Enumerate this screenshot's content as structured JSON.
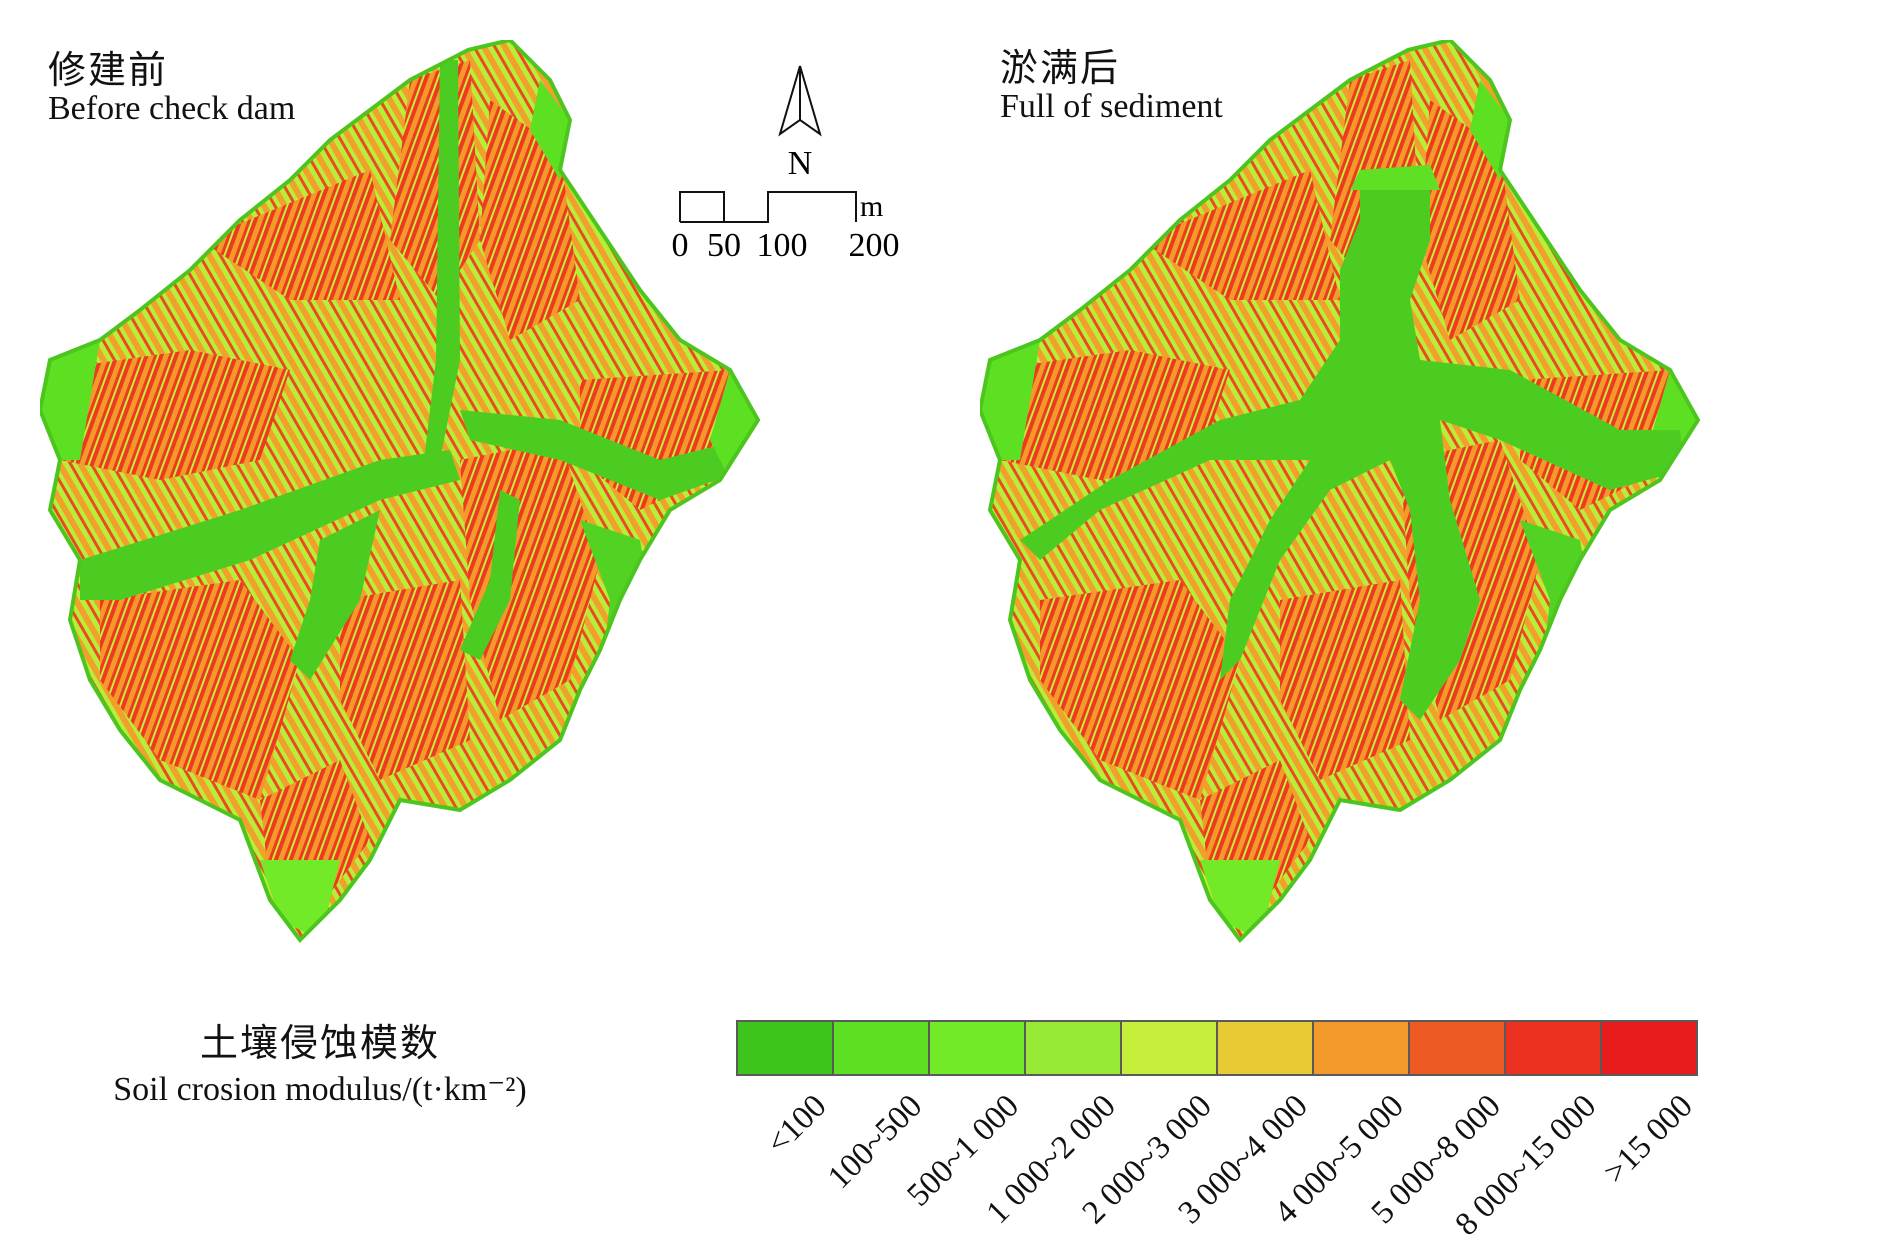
{
  "panels": {
    "left": {
      "title_zh": "修建前",
      "title_en": "Before check dam"
    },
    "right": {
      "title_zh": "淤满后",
      "title_en": "Full of sediment"
    }
  },
  "north_arrow": {
    "label": "N"
  },
  "scale_bar": {
    "unit": "m",
    "ticks": [
      "0",
      "50",
      "100",
      "200"
    ]
  },
  "legend": {
    "title_zh": "土壤侵蚀模数",
    "title_en": "Soil crosion modulus/(t·km⁻²)",
    "classes": [
      {
        "label": "<100",
        "color": "#3fc41c"
      },
      {
        "label": "100~500",
        "color": "#5ee022"
      },
      {
        "label": "500~1 000",
        "color": "#72ea28"
      },
      {
        "label": "1 000~2 000",
        "color": "#98ea38"
      },
      {
        "label": "2 000~3 000",
        "color": "#c4ee3a"
      },
      {
        "label": "3 000~4 000",
        "color": "#e8cb34"
      },
      {
        "label": "4 000~5 000",
        "color": "#f29a2c"
      },
      {
        "label": "5 000~8 000",
        "color": "#ee5a24"
      },
      {
        "label": "8 000~15 000",
        "color": "#ec3120"
      },
      {
        "label": ">15 000",
        "color": "#e81c1c"
      }
    ]
  }
}
